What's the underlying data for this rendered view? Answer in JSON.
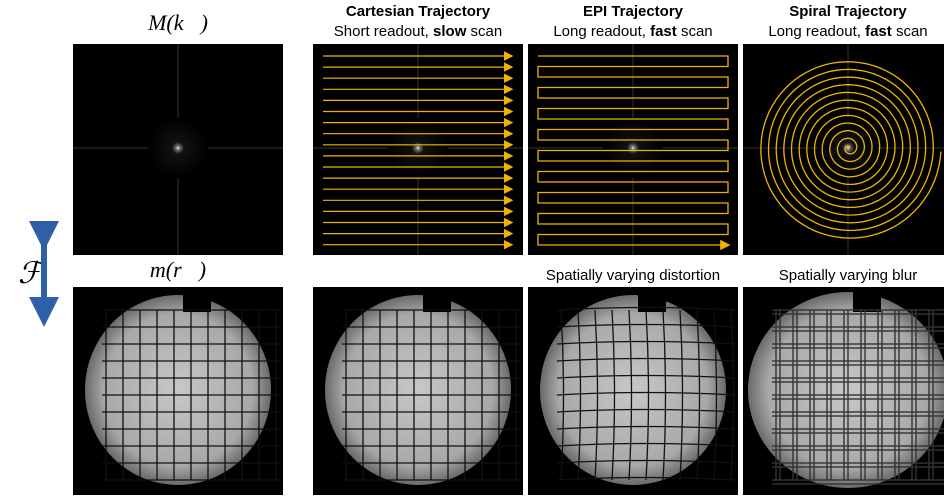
{
  "labels": {
    "kspace": "M(k⃗)",
    "image": "m(r⃗)",
    "fourier": "ℱ"
  },
  "columns": [
    {
      "title": "Cartesian Trajectory",
      "subtitle": [
        "Short readout, ",
        "slow",
        " scan"
      ]
    },
    {
      "title": "EPI Trajectory",
      "subtitle": [
        "Long readout, ",
        "fast",
        " scan"
      ],
      "caption": "Spatially varying distortion"
    },
    {
      "title": "Spiral Trajectory",
      "subtitle": [
        "Long readout, ",
        "fast",
        " scan"
      ],
      "caption": "Spatially varying blur"
    }
  ]
}
